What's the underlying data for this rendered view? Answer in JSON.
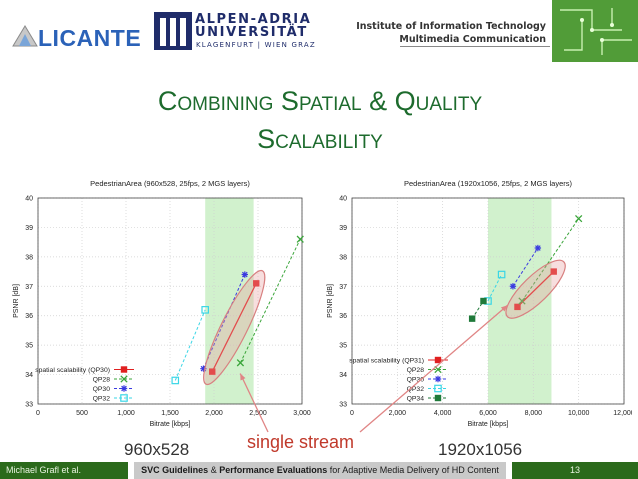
{
  "header": {
    "licante_logo": "LICANTE",
    "aau_name_line1": "ALPEN-ADRIA",
    "aau_name_line2": "UNIVERSITÄT",
    "aau_sub": "KLAGENFURT | WIEN GRAZ",
    "institute_line1": "Institute of Information Technology",
    "institute_line2": "Multimedia Communication"
  },
  "slide": {
    "title_line1": "Combining Spatial & Quality",
    "title_line2": "Scalability",
    "res_left": "960x528",
    "res_right": "1920x1056",
    "single_stream": "single stream"
  },
  "footer": {
    "author": "Michael Grafl et al.",
    "title_bold1": "SVC Guidelines",
    "title_amp": " & ",
    "title_bold2": "Performance Evaluations",
    "title_rest": " for Adaptive Media Delivery of HD Content",
    "page": "13"
  },
  "colors": {
    "title_green": "#1d6b2d",
    "footer_green": "#2b6a1b",
    "highlight_band": "#c9efc4",
    "ellipse": "#e9a0a0",
    "arrow": "#e08585"
  },
  "chart_data": [
    {
      "type": "scatter",
      "title": "PedestrianArea (960x528, 25fps, 2 MGS layers)",
      "xlabel": "Bitrate [kbps]",
      "ylabel": "PSNR [dB]",
      "xlim": [
        0,
        3000
      ],
      "ylim": [
        33,
        40
      ],
      "xticks": [
        0,
        500,
        1000,
        1500,
        2000,
        2500,
        3000
      ],
      "xtick_labels": [
        "0",
        "500",
        "1,000",
        "1,500",
        "2,000",
        "2,500",
        "3,000"
      ],
      "yticks": [
        33,
        34,
        35,
        36,
        37,
        38,
        39,
        40
      ],
      "band": [
        1900,
        2450
      ],
      "legend_position": "bottom-left",
      "series": [
        {
          "name": "spatial scalability (QP30)",
          "color": "#e02020",
          "marker": "square",
          "line": "solid",
          "x": [
            1980,
            2480
          ],
          "y": [
            34.1,
            37.1
          ]
        },
        {
          "name": "QP28",
          "color": "#3aa53a",
          "marker": "x",
          "line": "dashed",
          "x": [
            2300,
            2980
          ],
          "y": [
            34.4,
            38.6
          ]
        },
        {
          "name": "QP30",
          "color": "#3a3ae0",
          "marker": "star",
          "line": "dashed",
          "x": [
            1880,
            2350
          ],
          "y": [
            34.2,
            37.4
          ]
        },
        {
          "name": "QP32",
          "color": "#3ad6e6",
          "marker": "open-square",
          "line": "dashed",
          "x": [
            1560,
            1900
          ],
          "y": [
            33.8,
            36.2
          ]
        }
      ]
    },
    {
      "type": "scatter",
      "title": "PedestrianArea (1920x1056, 25fps, 2 MGS layers)",
      "xlabel": "Bitrate [kbps]",
      "ylabel": "PSNR [dB]",
      "xlim": [
        0,
        12000
      ],
      "ylim": [
        33,
        40
      ],
      "xticks": [
        0,
        2000,
        4000,
        6000,
        8000,
        10000,
        12000
      ],
      "xtick_labels": [
        "0",
        "2,000",
        "4,000",
        "6,000",
        "8,000",
        "10,000",
        "12,000"
      ],
      "yticks": [
        33,
        34,
        35,
        36,
        37,
        38,
        39,
        40
      ],
      "band": [
        6000,
        8800
      ],
      "legend_position": "bottom-left",
      "series": [
        {
          "name": "spatial scalability (QP31)",
          "color": "#e02020",
          "marker": "square",
          "line": "solid",
          "x": [
            7300,
            8900
          ],
          "y": [
            36.3,
            37.5
          ]
        },
        {
          "name": "QP28",
          "color": "#3aa53a",
          "marker": "x",
          "line": "dashed",
          "x": [
            7500,
            10000
          ],
          "y": [
            36.5,
            39.3
          ]
        },
        {
          "name": "QP30",
          "color": "#3a3ae0",
          "marker": "star",
          "line": "dashed",
          "x": [
            7100,
            8200
          ],
          "y": [
            37.0,
            38.3
          ]
        },
        {
          "name": "QP32",
          "color": "#3ad6e6",
          "marker": "open-square",
          "line": "dashed",
          "x": [
            6000,
            6600
          ],
          "y": [
            36.5,
            37.4
          ]
        },
        {
          "name": "QP34",
          "color": "#1f7a3a",
          "marker": "square",
          "line": "dashed",
          "x": [
            5300,
            5800
          ],
          "y": [
            35.9,
            36.5
          ]
        }
      ]
    }
  ]
}
